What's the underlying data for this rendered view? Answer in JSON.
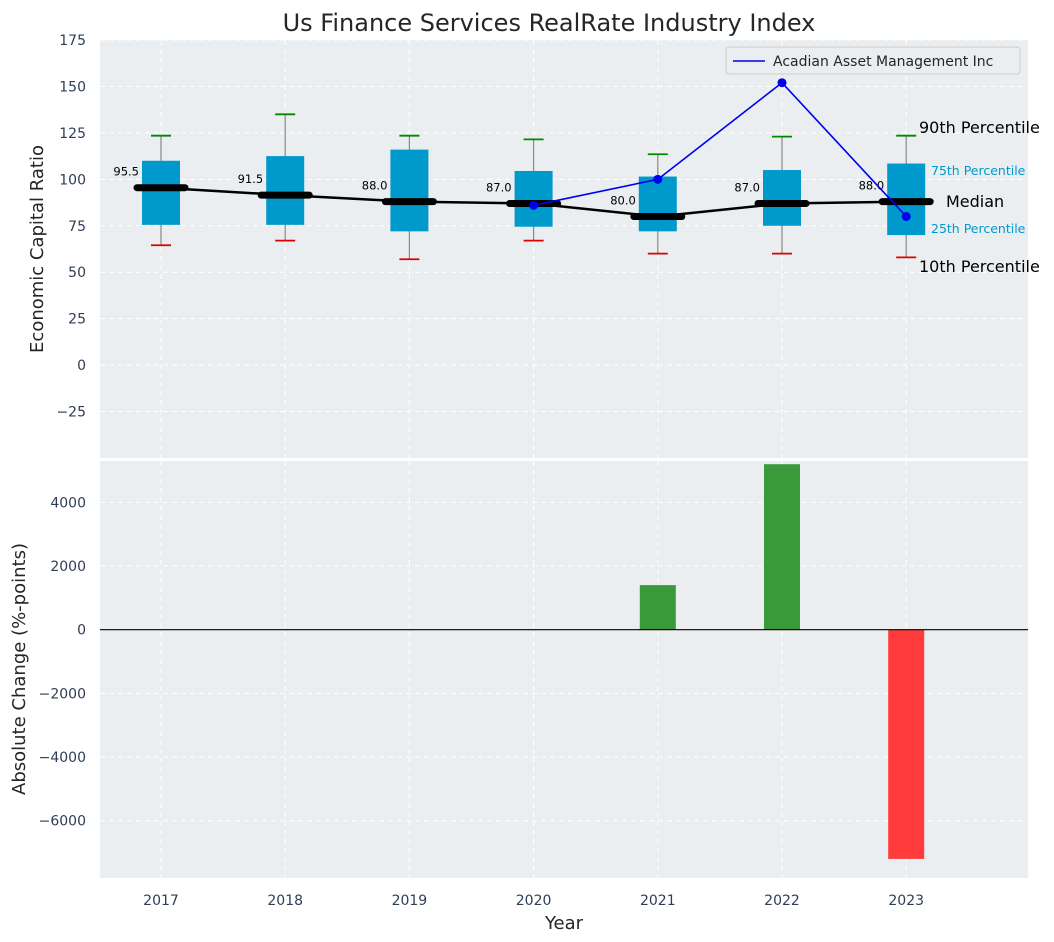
{
  "chart_data": {
    "type": "box",
    "title": "Us Finance Services RealRate Industry Index",
    "xlabel": "Year",
    "categories": [
      "2017",
      "2018",
      "2019",
      "2020",
      "2021",
      "2022",
      "2023"
    ],
    "top_panel": {
      "ylabel": "Economic Capital Ratio",
      "ylim": [
        -50,
        175
      ],
      "yticks": [
        -25,
        0,
        25,
        50,
        75,
        100,
        125,
        150,
        175
      ],
      "ytick_labels": [
        "−25",
        "0",
        "25",
        "50",
        "75",
        "100",
        "125",
        "150",
        "175"
      ],
      "grid": true,
      "legend_position": "top-right",
      "box_color": "#0099cc",
      "p10_color": "#dd0000",
      "p90_color": "#008800",
      "boxes": [
        {
          "year": "2017",
          "p10": 64.5,
          "p25": 75.5,
          "median": 95.5,
          "p75": 110,
          "p90": 123.5
        },
        {
          "year": "2018",
          "p10": 67,
          "p25": 75.5,
          "median": 91.5,
          "p75": 112.5,
          "p90": 135
        },
        {
          "year": "2019",
          "p10": 57,
          "p25": 72,
          "median": 88.0,
          "p75": 116,
          "p90": 123.5
        },
        {
          "year": "2020",
          "p10": 67,
          "p25": 74.5,
          "median": 87.0,
          "p75": 104.5,
          "p90": 121.5
        },
        {
          "year": "2021",
          "p10": 60,
          "p25": 72,
          "median": 80.0,
          "p75": 101.5,
          "p90": 113.5
        },
        {
          "year": "2022",
          "p10": 60,
          "p25": 75,
          "median": 87.0,
          "p75": 105,
          "p90": 123
        },
        {
          "year": "2023",
          "p10": 58,
          "p25": 70,
          "median": 88.0,
          "p75": 108.5,
          "p90": 123.5
        }
      ],
      "median_labels": [
        "95.5",
        "91.5",
        "88.0",
        "87.0",
        "80.0",
        "87.0",
        "88.0"
      ],
      "company_series": {
        "name": "Acadian Asset Management Inc",
        "color": "#0000ee",
        "x": [
          "2020",
          "2021",
          "2022",
          "2023"
        ],
        "values": [
          86,
          100,
          152,
          80
        ]
      },
      "percentile_labels": {
        "p90": "90th Percentile",
        "p75": "75th Percentile",
        "median": "Median",
        "p25": "25th Percentile",
        "p10": "10th Percentile"
      }
    },
    "bottom_panel": {
      "type": "bar",
      "ylabel": "Absolute Change (%-points)",
      "ylim": [
        -7800,
        5300
      ],
      "yticks": [
        -6000,
        -4000,
        -2000,
        0,
        2000,
        4000
      ],
      "ytick_labels": [
        "−6000",
        "−4000",
        "−2000",
        "0",
        "2000",
        "4000"
      ],
      "positive_color": "#3a9a3a",
      "negative_color": "#ff3b3b",
      "x": [
        "2021",
        "2022",
        "2023"
      ],
      "values": [
        1400,
        5200,
        -7200
      ]
    }
  }
}
